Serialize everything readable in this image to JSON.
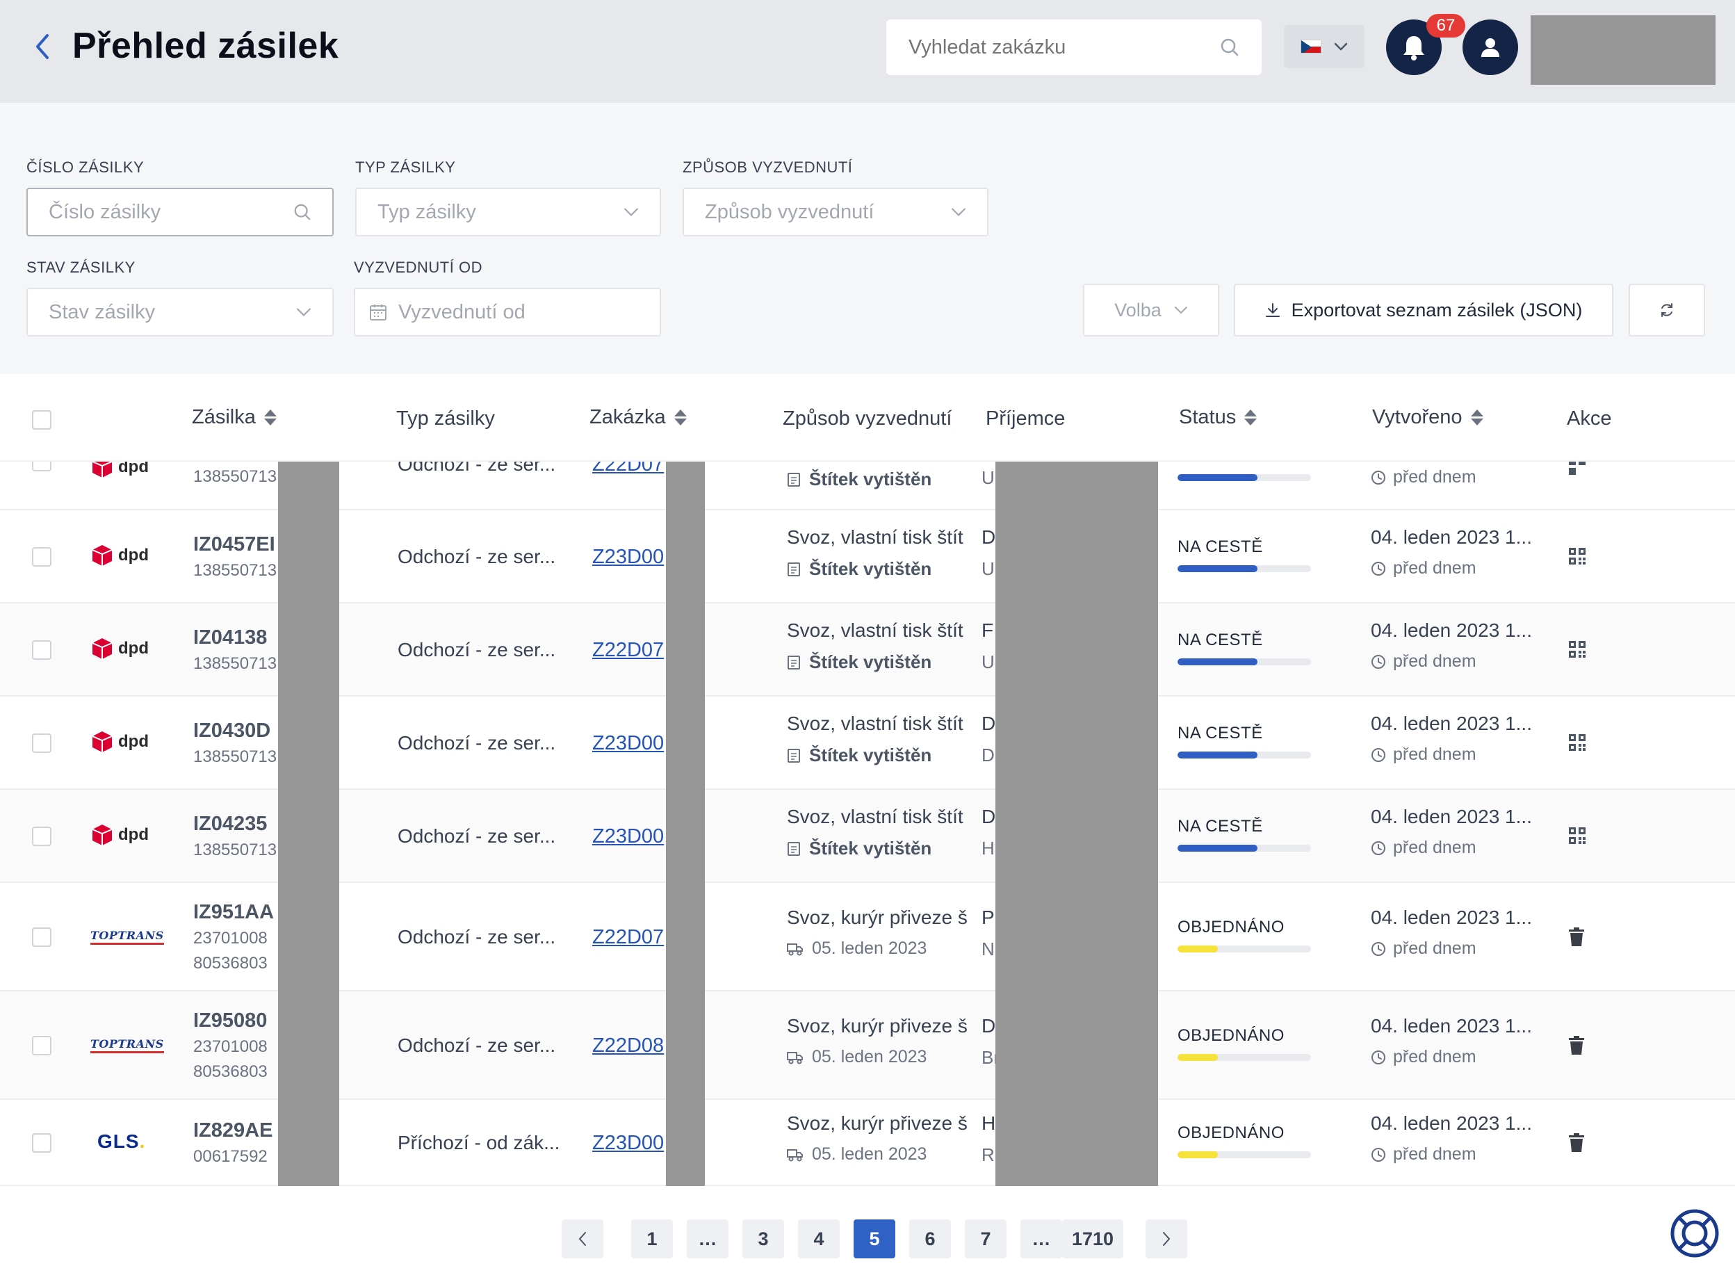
{
  "header": {
    "title": "Přehled zásilek",
    "search_placeholder": "Vyhledat zakázku",
    "notifications_count": "67",
    "flag_icon": "czech-flag-icon"
  },
  "filters": {
    "shipment_number": {
      "label": "ČÍSLO ZÁSILKY",
      "placeholder": "Číslo zásilky"
    },
    "shipment_type": {
      "label": "TYP ZÁSILKY",
      "placeholder": "Typ zásilky"
    },
    "pickup_method": {
      "label": "ZPŮSOB VYZVEDNUTÍ",
      "placeholder": "Způsob vyzvednutí"
    },
    "shipment_status": {
      "label": "STAV ZÁSILKY",
      "placeholder": "Stav zásilky"
    },
    "pickup_from": {
      "label": "VYZVEDNUTÍ OD",
      "placeholder": "Vyzvednutí od"
    },
    "volba_label": "Volba",
    "export_label": "Exportovat seznam zásilek (JSON)"
  },
  "table": {
    "columns": {
      "shipment": "Zásilka",
      "type": "Typ zásilky",
      "order": "Zakázka",
      "pickup": "Způsob vyzvednutí",
      "recipient": "Příjemce",
      "status": "Status",
      "created": "Vytvořeno",
      "actions": "Akce"
    },
    "colors": {
      "on_way": "#2f5fc4",
      "ordered": "#f6e23a"
    },
    "partial_row": {
      "sub": "138550713",
      "type": "Odchozí - ze ser...",
      "order": "Z22D07",
      "pickup_sub": "Štítek vytištěn",
      "recipient_sub": "U",
      "created_sub": "před dnem"
    },
    "rows": [
      {
        "carrier": "dpd",
        "shipment": "IZ0457EI",
        "sub": "138550713",
        "sub2": "",
        "type": "Odchozí - ze ser...",
        "order": "Z23D00",
        "pickup": "Svoz, vlastní tisk štít",
        "pickup_sub": "Štítek vytištěn",
        "recipient": "D",
        "recipient_sub": "U",
        "status": "NA CESTĚ",
        "progress": 0.6,
        "created": "04. leden 2023 1...",
        "created_sub": "před dnem",
        "action": "qr-code-icon"
      },
      {
        "carrier": "dpd",
        "shipment": "IZ04138",
        "sub": "138550713",
        "sub2": "",
        "type": "Odchozí - ze ser...",
        "order": "Z22D07",
        "pickup": "Svoz, vlastní tisk štít",
        "pickup_sub": "Štítek vytištěn",
        "recipient": "F",
        "recipient_sub": "U",
        "status": "NA CESTĚ",
        "progress": 0.6,
        "created": "04. leden 2023 1...",
        "created_sub": "před dnem",
        "action": "qr-code-icon"
      },
      {
        "carrier": "dpd",
        "shipment": "IZ0430D",
        "sub": "138550713",
        "sub2": "",
        "type": "Odchozí - ze ser...",
        "order": "Z23D00",
        "pickup": "Svoz, vlastní tisk štít",
        "pickup_sub": "Štítek vytištěn",
        "recipient": "D",
        "recipient_sub": "D",
        "status": "NA CESTĚ",
        "progress": 0.6,
        "created": "04. leden 2023 1...",
        "created_sub": "před dnem",
        "action": "qr-code-icon"
      },
      {
        "carrier": "dpd",
        "shipment": "IZ04235",
        "sub": "138550713",
        "sub2": "",
        "type": "Odchozí - ze ser...",
        "order": "Z23D00",
        "pickup": "Svoz, vlastní tisk štít",
        "pickup_sub": "Štítek vytištěn",
        "recipient": "D",
        "recipient_sub": "H",
        "status": "NA CESTĚ",
        "progress": 0.6,
        "created": "04. leden 2023 1...",
        "created_sub": "před dnem",
        "action": "qr-code-icon"
      },
      {
        "carrier": "toptrans",
        "shipment": "IZ951AA",
        "sub": "23701008",
        "sub2": "80536803",
        "type": "Odchozí - ze ser...",
        "order": "Z22D07",
        "pickup": "Svoz, kurýr přiveze š",
        "pickup_sub": "05. leden 2023",
        "recipient": "P",
        "recipient_sub": "N",
        "status": "OBJEDNÁNO",
        "progress": 0.3,
        "created": "04. leden 2023 1...",
        "created_sub": "před dnem",
        "action": "trash-icon"
      },
      {
        "carrier": "toptrans",
        "shipment": "IZ95080",
        "sub": "23701008",
        "sub2": "80536803",
        "type": "Odchozí - ze ser...",
        "order": "Z22D08",
        "pickup": "Svoz, kurýr přiveze š",
        "pickup_sub": "05. leden 2023",
        "recipient": "D",
        "recipient_sub": "Br",
        "status": "OBJEDNÁNO",
        "progress": 0.3,
        "created": "04. leden 2023 1...",
        "created_sub": "před dnem",
        "action": "trash-icon"
      },
      {
        "carrier": "gls",
        "shipment": "IZ829AE",
        "sub": "00617592",
        "sub2": "",
        "type": "Příchozí - od zák...",
        "order": "Z23D00",
        "pickup": "Svoz, kurýr přiveze š",
        "pickup_sub": "05. leden 2023",
        "recipient": "H",
        "recipient_sub": "Ru",
        "status": "OBJEDNÁNO",
        "progress": 0.3,
        "created": "04. leden 2023 1...",
        "created_sub": "před dnem",
        "action": "trash-icon"
      }
    ]
  },
  "carriers": {
    "dpd": "dpd",
    "toptrans": "TOPTRANS",
    "gls": "GLS"
  },
  "pagination": {
    "pages": [
      "1",
      "…",
      "3",
      "4",
      "5",
      "6",
      "7",
      "…",
      "1710"
    ],
    "current": "5"
  }
}
